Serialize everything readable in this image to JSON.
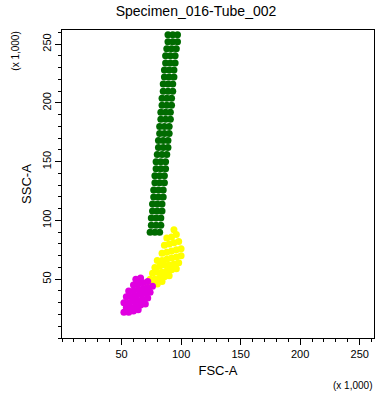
{
  "chart_data": {
    "type": "scatter",
    "title": "Specimen_016-Tube_002",
    "x_label": "FSC-A",
    "y_label": "SSC-A",
    "x_multiplier_label": "(x 1,000)",
    "y_multiplier_label": "(x 1,000)",
    "xlim": [
      0,
      262
    ],
    "ylim": [
      0,
      262
    ],
    "xticks": [
      50,
      100,
      150,
      200,
      250
    ],
    "yticks": [
      50,
      100,
      150,
      200,
      250
    ],
    "grid": false,
    "marker": "circle",
    "series": [
      {
        "color": "#006b00",
        "x": [
          74,
          78,
          82,
          75,
          79,
          83,
          75,
          79,
          83,
          76,
          80,
          84,
          76,
          80,
          84,
          77,
          81,
          85,
          77,
          81,
          85,
          78,
          82,
          86,
          78,
          82,
          86,
          79,
          83,
          87,
          79,
          83,
          87,
          80,
          84,
          88,
          81,
          85,
          89,
          81,
          85,
          89,
          82,
          86,
          90,
          82,
          86,
          90,
          83,
          87,
          91,
          83,
          87,
          91,
          84,
          88,
          92,
          84,
          88,
          92,
          85,
          89,
          93,
          85,
          89,
          93,
          86,
          90,
          94,
          86,
          90,
          94,
          87,
          91,
          95,
          87,
          91,
          95,
          88,
          92,
          96,
          89,
          93,
          97,
          89,
          93,
          97
        ],
        "y": [
          90,
          90,
          90,
          96,
          96,
          96,
          102,
          102,
          102,
          108,
          108,
          108,
          114,
          114,
          114,
          120,
          120,
          120,
          126,
          126,
          126,
          132,
          132,
          132,
          138,
          138,
          138,
          144,
          144,
          144,
          150,
          150,
          150,
          156,
          156,
          156,
          162,
          162,
          162,
          168,
          168,
          168,
          174,
          174,
          174,
          180,
          180,
          180,
          186,
          186,
          186,
          192,
          192,
          192,
          198,
          198,
          198,
          204,
          204,
          204,
          210,
          210,
          210,
          216,
          216,
          216,
          222,
          222,
          222,
          228,
          228,
          228,
          234,
          234,
          234,
          240,
          240,
          240,
          246,
          246,
          246,
          252,
          252,
          252,
          258,
          258,
          258
        ]
      },
      {
        "color": "#ffff00",
        "x": [
          72,
          76,
          80,
          84,
          74,
          78,
          82,
          86,
          90,
          76,
          80,
          84,
          88,
          92,
          96,
          78,
          82,
          86,
          90,
          94,
          98,
          80,
          84,
          88,
          92,
          96,
          100,
          84,
          88,
          92,
          96,
          100,
          86,
          90,
          94,
          98,
          92,
          96,
          88,
          94
        ],
        "y": [
          45,
          45,
          46,
          48,
          50,
          50,
          51,
          52,
          53,
          55,
          56,
          56,
          57,
          58,
          59,
          60,
          61,
          62,
          62,
          63,
          64,
          66,
          66,
          67,
          68,
          69,
          70,
          72,
          73,
          74,
          75,
          76,
          79,
          80,
          81,
          82,
          86,
          88,
          85,
          92
        ]
      },
      {
        "color": "#e000e0",
        "x": [
          52,
          56,
          60,
          64,
          54,
          58,
          62,
          66,
          70,
          52,
          56,
          60,
          64,
          68,
          72,
          54,
          58,
          62,
          66,
          70,
          74,
          56,
          60,
          64,
          68,
          72,
          76,
          60,
          64,
          68,
          72,
          62,
          66
        ],
        "y": [
          22,
          22,
          23,
          24,
          26,
          26,
          27,
          28,
          29,
          30,
          30,
          31,
          32,
          33,
          34,
          35,
          35,
          36,
          37,
          38,
          39,
          40,
          40,
          41,
          42,
          43,
          44,
          45,
          46,
          47,
          48,
          50,
          51
        ]
      }
    ]
  }
}
